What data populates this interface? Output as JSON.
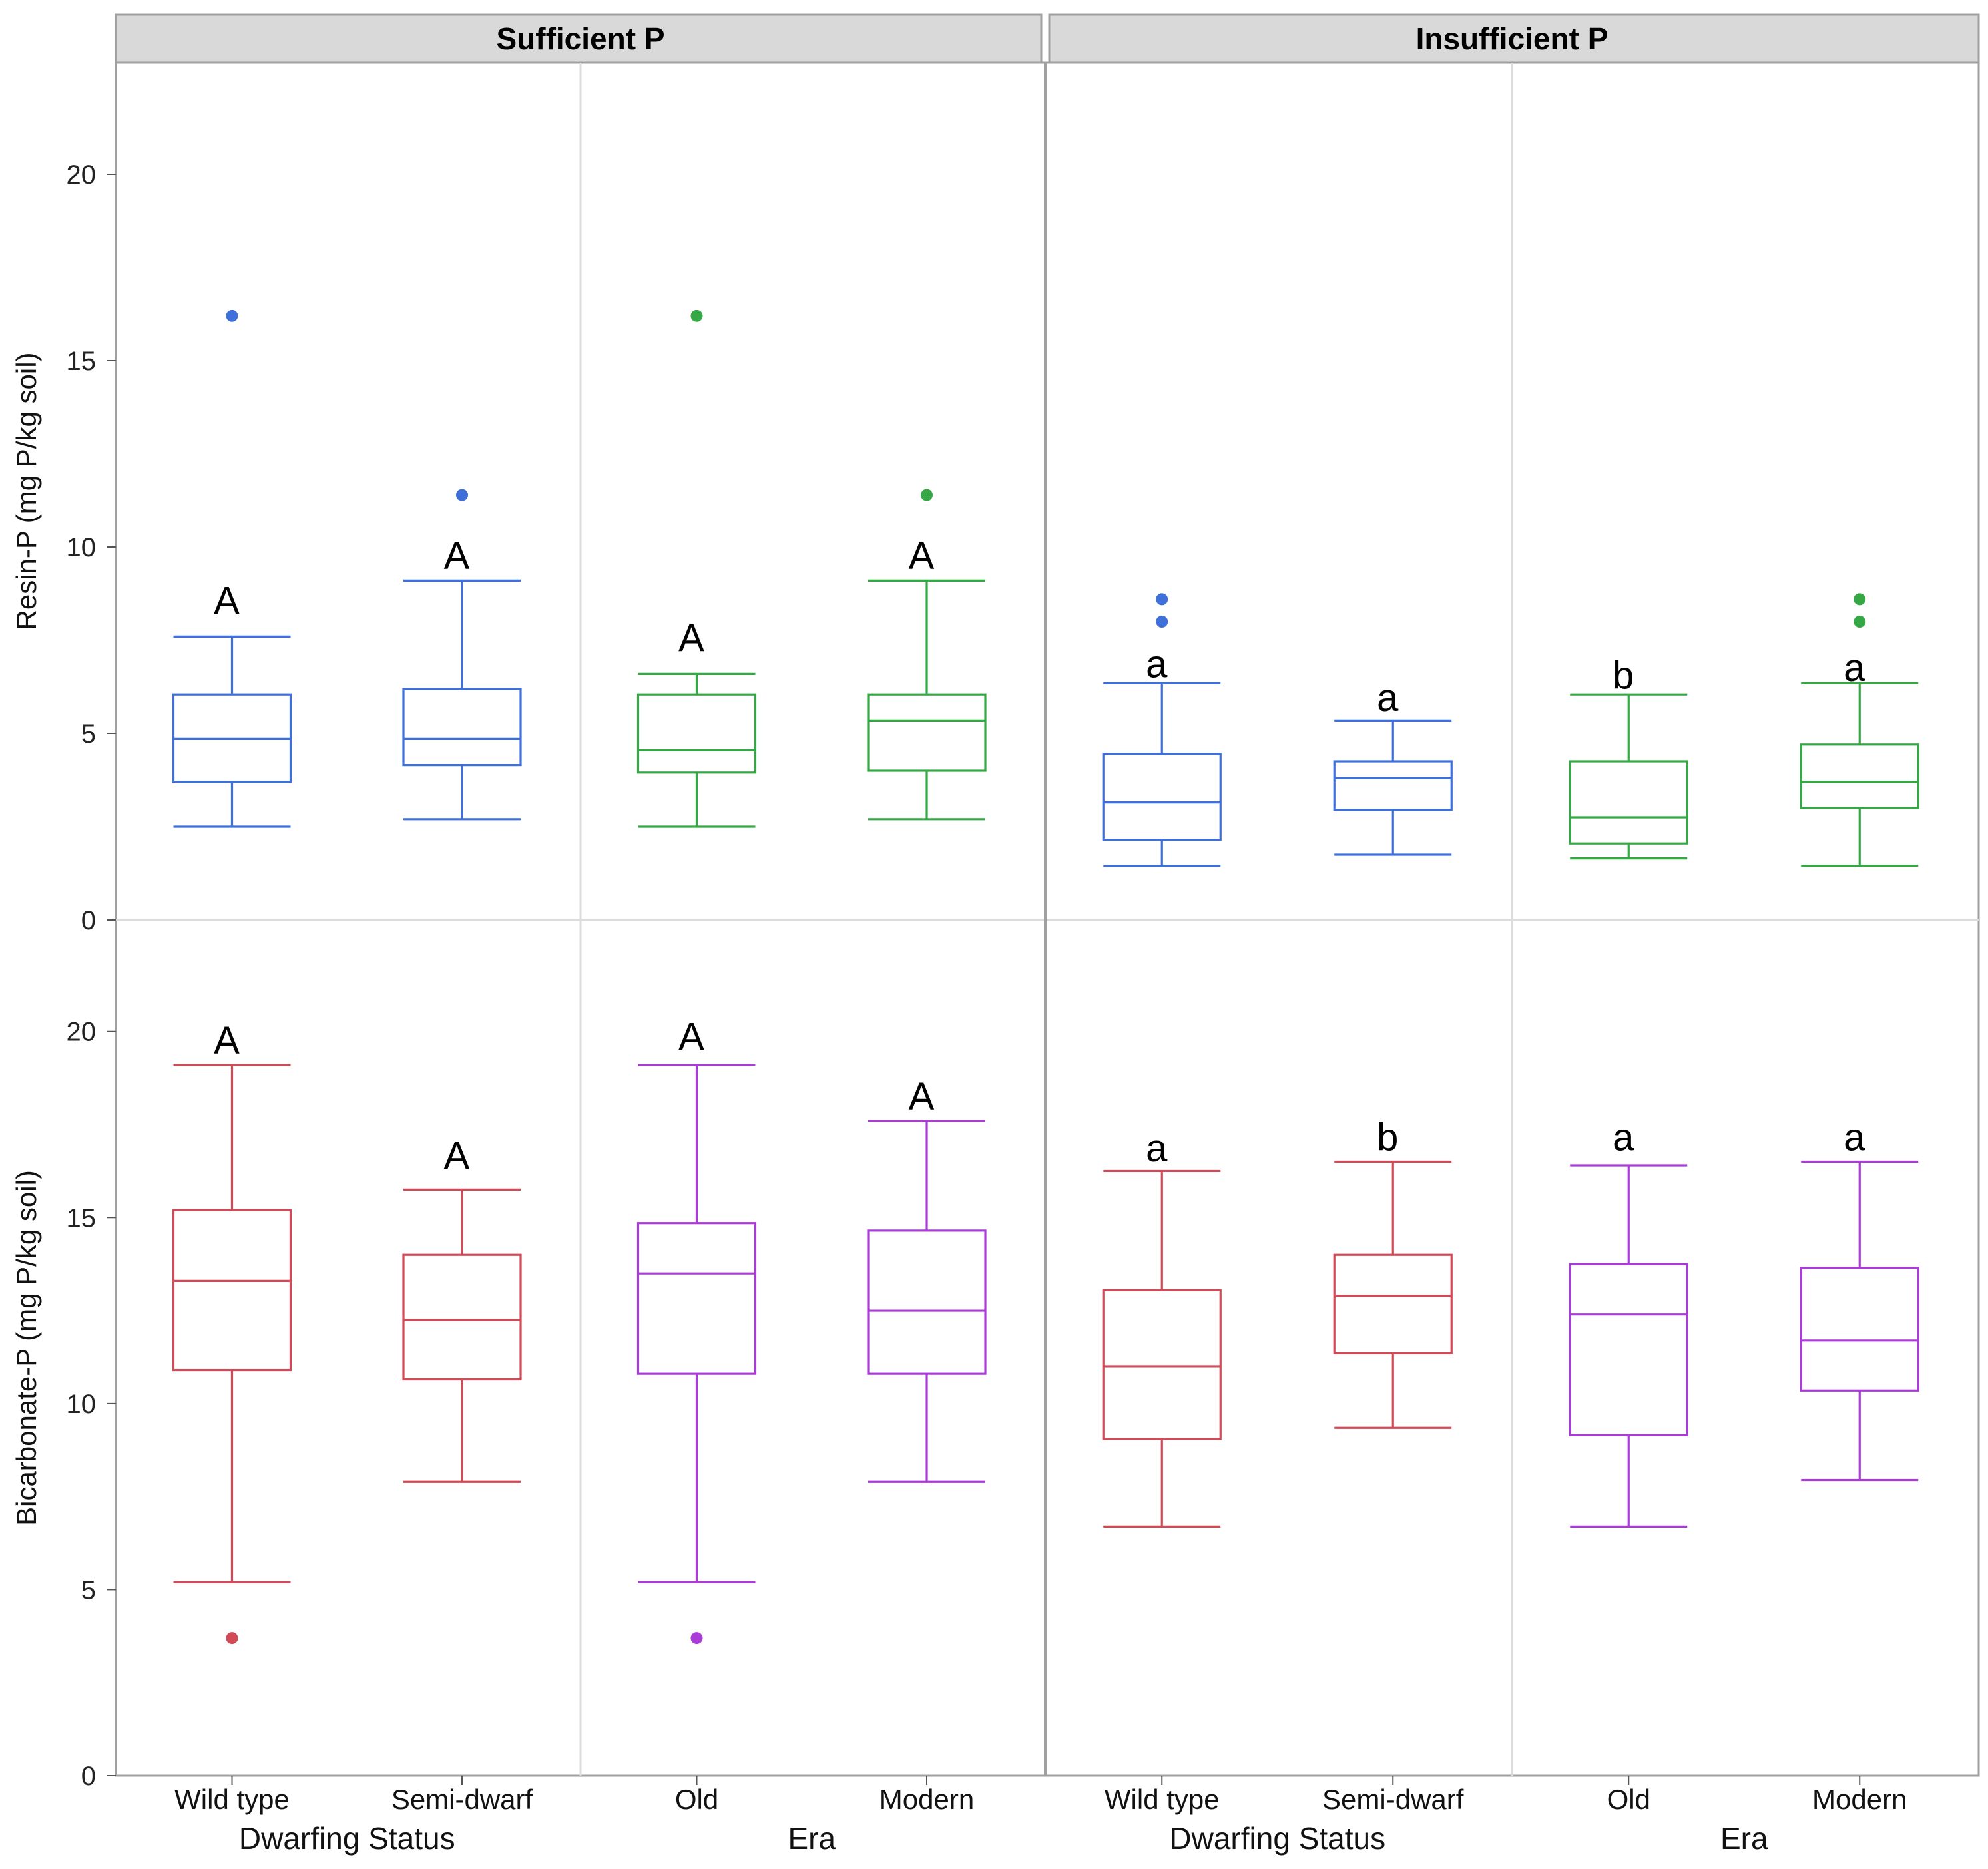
{
  "chart_data": {
    "type": "box",
    "facets": [
      "Sufficient P",
      "Insufficient P"
    ],
    "groups": [
      {
        "name": "Dwarfing Status",
        "categories": [
          "Wild type",
          "Semi-dwarf"
        ]
      },
      {
        "name": "Era",
        "categories": [
          "Old",
          "Modern"
        ]
      }
    ],
    "rows": [
      {
        "ylabel": "Resin-P (mg P/kg soil)",
        "ylim": [
          0,
          23
        ],
        "yticks": [
          "0",
          "5",
          "10",
          "15",
          "20"
        ]
      },
      {
        "ylabel": "Bicarbonate-P (mg P/kg soil)",
        "ylim": [
          0,
          23
        ],
        "yticks": [
          "0",
          "5",
          "10",
          "15",
          "20"
        ]
      }
    ],
    "colors": {
      "resin_dwarf": "#3f6fd8",
      "resin_era": "#35a845",
      "bicarb_dwarf": "#d04a57",
      "bicarb_era": "#a93cd6",
      "strip_bg": "#d9d9d9",
      "grid": "#dcdcdc",
      "frame": "#a0a0a0"
    },
    "boxes": [
      {
        "row": 0,
        "facet": 0,
        "group": 0,
        "category": "Wild type",
        "color": "resin_dwarf",
        "min": 2.5,
        "q1": 3.7,
        "median": 4.85,
        "q3": 6.05,
        "max": 7.6,
        "outliers": [
          16.2
        ],
        "letter": "A",
        "letter_y": 8.6
      },
      {
        "row": 0,
        "facet": 0,
        "group": 0,
        "category": "Semi-dwarf",
        "color": "resin_dwarf",
        "min": 2.7,
        "q1": 4.15,
        "median": 4.85,
        "q3": 6.2,
        "max": 9.1,
        "outliers": [
          11.4
        ],
        "letter": "A",
        "letter_y": 9.8
      },
      {
        "row": 0,
        "facet": 0,
        "group": 1,
        "category": "Old",
        "color": "resin_era",
        "min": 2.5,
        "q1": 3.95,
        "median": 4.55,
        "q3": 6.05,
        "max": 6.6,
        "outliers": [
          16.2
        ],
        "letter": "A",
        "letter_y": 7.6
      },
      {
        "row": 0,
        "facet": 0,
        "group": 1,
        "category": "Modern",
        "color": "resin_era",
        "min": 2.7,
        "q1": 4.0,
        "median": 5.35,
        "q3": 6.05,
        "max": 9.1,
        "outliers": [
          11.4
        ],
        "letter": "A",
        "letter_y": 9.8
      },
      {
        "row": 0,
        "facet": 1,
        "group": 0,
        "category": "Wild type",
        "color": "resin_dwarf",
        "min": 1.45,
        "q1": 2.15,
        "median": 3.15,
        "q3": 4.45,
        "max": 6.35,
        "outliers": [
          8.0,
          8.6
        ],
        "letter": "a",
        "letter_y": 6.9
      },
      {
        "row": 0,
        "facet": 1,
        "group": 0,
        "category": "Semi-dwarf",
        "color": "resin_dwarf",
        "min": 1.75,
        "q1": 2.95,
        "median": 3.8,
        "q3": 4.25,
        "max": 5.35,
        "outliers": [],
        "letter": "a",
        "letter_y": 6.0
      },
      {
        "row": 0,
        "facet": 1,
        "group": 1,
        "category": "Old",
        "color": "resin_era",
        "min": 1.65,
        "q1": 2.05,
        "median": 2.75,
        "q3": 4.25,
        "max": 6.05,
        "outliers": [],
        "letter": "b",
        "letter_y": 6.6
      },
      {
        "row": 0,
        "facet": 1,
        "group": 1,
        "category": "Modern",
        "color": "resin_era",
        "min": 1.45,
        "q1": 3.0,
        "median": 3.7,
        "q3": 4.7,
        "max": 6.35,
        "outliers": [
          8.0,
          8.6
        ],
        "letter": "a",
        "letter_y": 6.8
      },
      {
        "row": 1,
        "facet": 0,
        "group": 0,
        "category": "Wild type",
        "color": "bicarb_dwarf",
        "min": 5.2,
        "q1": 10.9,
        "median": 13.3,
        "q3": 15.2,
        "max": 19.1,
        "outliers": [
          3.7
        ],
        "letter": "A",
        "letter_y": 19.8
      },
      {
        "row": 1,
        "facet": 0,
        "group": 0,
        "category": "Semi-dwarf",
        "color": "bicarb_dwarf",
        "min": 7.9,
        "q1": 10.65,
        "median": 12.25,
        "q3": 14.0,
        "max": 15.75,
        "outliers": [],
        "letter": "A",
        "letter_y": 16.7
      },
      {
        "row": 1,
        "facet": 0,
        "group": 1,
        "category": "Old",
        "color": "bicarb_era",
        "min": 5.2,
        "q1": 10.8,
        "median": 13.5,
        "q3": 14.85,
        "max": 19.1,
        "outliers": [
          3.7
        ],
        "letter": "A",
        "letter_y": 19.9
      },
      {
        "row": 1,
        "facet": 0,
        "group": 1,
        "category": "Modern",
        "color": "bicarb_era",
        "min": 7.9,
        "q1": 10.8,
        "median": 12.5,
        "q3": 14.65,
        "max": 17.6,
        "outliers": [],
        "letter": "A",
        "letter_y": 18.3
      },
      {
        "row": 1,
        "facet": 1,
        "group": 0,
        "category": "Wild type",
        "color": "bicarb_dwarf",
        "min": 6.7,
        "q1": 9.05,
        "median": 11.0,
        "q3": 13.05,
        "max": 16.25,
        "outliers": [],
        "letter": "a",
        "letter_y": 16.9
      },
      {
        "row": 1,
        "facet": 1,
        "group": 0,
        "category": "Semi-dwarf",
        "color": "bicarb_dwarf",
        "min": 9.35,
        "q1": 11.35,
        "median": 12.9,
        "q3": 14.0,
        "max": 16.5,
        "outliers": [],
        "letter": "b",
        "letter_y": 17.2
      },
      {
        "row": 1,
        "facet": 1,
        "group": 1,
        "category": "Old",
        "color": "bicarb_era",
        "min": 6.7,
        "q1": 9.15,
        "median": 12.4,
        "q3": 13.75,
        "max": 16.4,
        "outliers": [],
        "letter": "a",
        "letter_y": 17.2
      },
      {
        "row": 1,
        "facet": 1,
        "group": 1,
        "category": "Modern",
        "color": "bicarb_era",
        "min": 7.95,
        "q1": 10.35,
        "median": 11.7,
        "q3": 13.65,
        "max": 16.5,
        "outliers": [],
        "letter": "a",
        "letter_y": 17.2
      }
    ]
  }
}
